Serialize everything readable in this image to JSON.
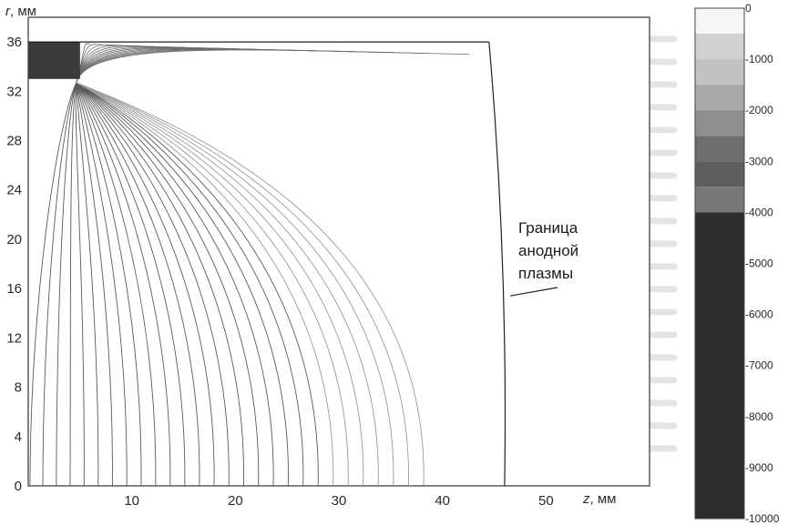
{
  "chart_data": {
    "type": "contour",
    "xlabel_var": "z",
    "xlabel_unit": "мм",
    "ylabel_var": "r",
    "ylabel_unit": "мм",
    "xlim": [
      0,
      60
    ],
    "ylim": [
      0,
      38
    ],
    "xticks": [
      10,
      20,
      30,
      40,
      50
    ],
    "yticks": [
      0,
      4,
      8,
      12,
      16,
      20,
      24,
      28,
      32,
      36
    ],
    "grid": false,
    "electrode": {
      "r_top": 36,
      "r_bottom": 33,
      "z_tip": 5
    },
    "domain_right": {
      "z_top": 44.5,
      "z_bottom": 46
    },
    "contour_levels": 28,
    "annotation": {
      "lines": [
        "Граница",
        "анодной",
        "плазмы"
      ],
      "points_to_z": 46,
      "points_to_r": 16
    },
    "colorbar": {
      "ticks": [
        0,
        -1000,
        -2000,
        -3000,
        -4000,
        -5000,
        -6000,
        -7000,
        -8000,
        -9000,
        -10000
      ],
      "bands": [
        {
          "from": 0,
          "to": -500,
          "color": "#f6f6f6"
        },
        {
          "from": -500,
          "to": -1000,
          "color": "#d0d0d0"
        },
        {
          "from": -1000,
          "to": -1500,
          "color": "#c2c2c2"
        },
        {
          "from": -1500,
          "to": -2000,
          "color": "#a8a8a8"
        },
        {
          "from": -2000,
          "to": -2500,
          "color": "#8f8f8f"
        },
        {
          "from": -2500,
          "to": -3000,
          "color": "#6e6e6e"
        },
        {
          "from": -3000,
          "to": -3500,
          "color": "#5e5e5e"
        },
        {
          "from": -3500,
          "to": -4000,
          "color": "#777777"
        },
        {
          "from": -4000,
          "to": -10000,
          "color": "#2e2e2e"
        }
      ]
    }
  }
}
